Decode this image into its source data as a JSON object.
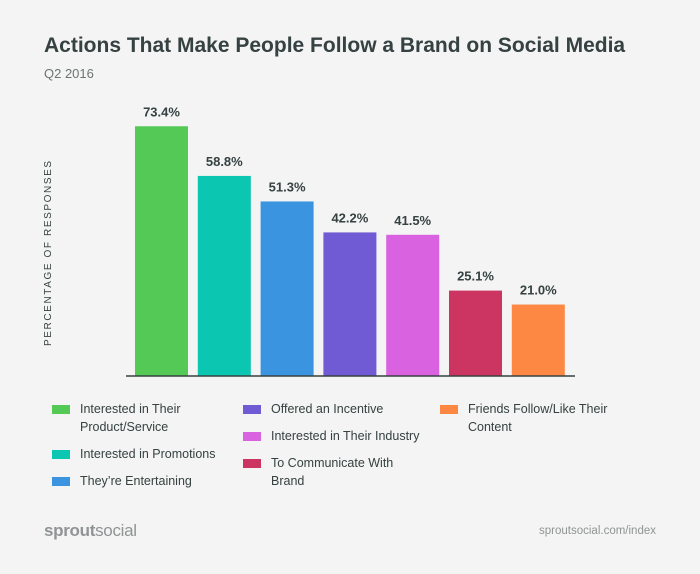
{
  "chart_data": {
    "type": "bar",
    "title": "Actions That Make People Follow a Brand on Social Media",
    "subtitle": "Q2 2016",
    "ylabel": "PERCENTAGE OF RESPONSES",
    "xlabel": "",
    "ylim": [
      0,
      75
    ],
    "grid": false,
    "legend_position": "bottom",
    "categories": [
      "Interested in Their Product/Service",
      "Interested in Promotions",
      "They're Entertaining",
      "Offered an Incentive",
      "Interested in Their Industry",
      "To Communicate With Brand",
      "Friends Follow/Like Their Content"
    ],
    "values": [
      73.4,
      58.8,
      51.3,
      42.2,
      41.5,
      25.1,
      21.0
    ],
    "data_labels": [
      "73.4%",
      "58.8%",
      "51.3%",
      "42.2%",
      "41.5%",
      "25.1%",
      "21.0%"
    ],
    "colors": [
      "#55c956",
      "#0bc6b1",
      "#3a94e0",
      "#715bd4",
      "#d862df",
      "#cc3562",
      "#fd8843"
    ]
  },
  "footer": {
    "logo_bold": "sprout",
    "logo_light": "social",
    "url": "sproutsocial.com/index"
  }
}
